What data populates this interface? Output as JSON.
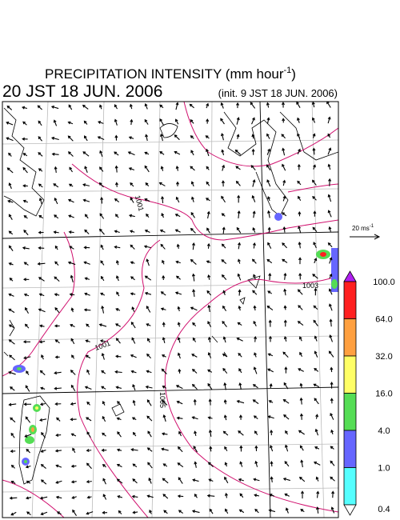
{
  "header": {
    "title": "PRECIPITATION INTENSITY (mm hour",
    "title_exponent": "-1",
    "title_close": ")",
    "valid_time": "20 JST 18 JUN. 2006",
    "init_time": "(init. 9 JST 18 JUN. 2006)"
  },
  "contour_labels": [
    "1001",
    "1003",
    "1001",
    "1005"
  ],
  "vector_legend": {
    "label": "20 ms",
    "exponent": "-1"
  },
  "colorbar": {
    "labels": [
      "100.0",
      "64.0",
      "32.0",
      "16.0",
      "4.0",
      "1.0",
      "0.4"
    ],
    "colors": [
      "#ff2020",
      "#ffa040",
      "#ffff66",
      "#55dd55",
      "#6666ff",
      "#55ffff"
    ],
    "over_color": "#b020f0",
    "under_color": "#ffffff"
  }
}
